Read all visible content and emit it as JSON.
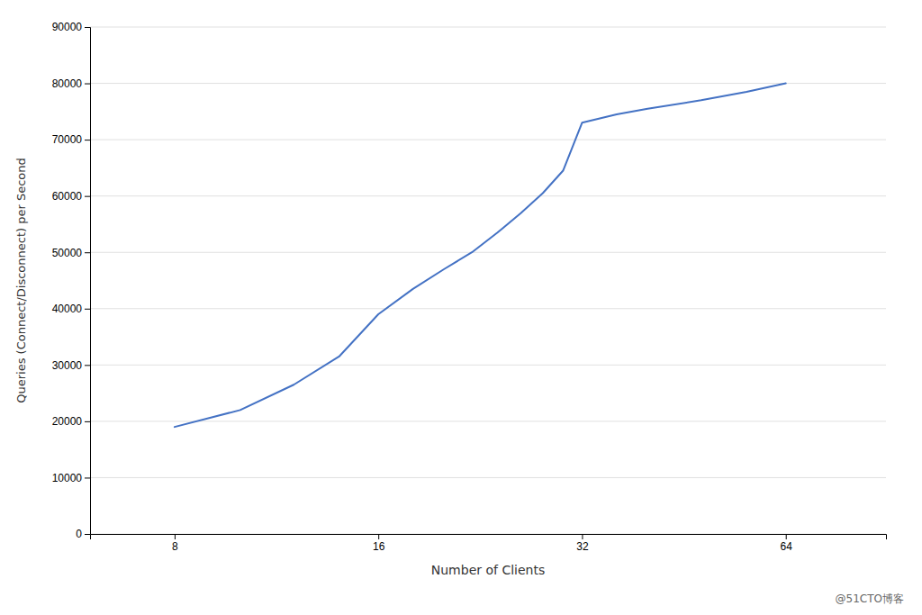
{
  "chart_data": {
    "type": "line",
    "x": [
      8,
      10,
      12,
      14,
      16,
      18,
      20,
      22,
      24,
      26,
      28,
      30,
      32,
      36,
      40,
      48,
      56,
      64
    ],
    "values": [
      19000,
      22000,
      26500,
      31500,
      39000,
      43500,
      47000,
      50000,
      53500,
      57000,
      60500,
      64500,
      73000,
      74500,
      75500,
      77000,
      78500,
      80000
    ],
    "color": "#4472C4",
    "log": "x",
    "grid": true,
    "xlabel": "Number of Clients",
    "ylabel": "Queries (Connect/Disconnect) per Second",
    "xlim": [
      6,
      90
    ],
    "ylim": [
      0,
      90000
    ],
    "xticks": [
      8,
      16,
      32,
      64
    ],
    "yticks": [
      0,
      10000,
      20000,
      30000,
      40000,
      50000,
      60000,
      70000,
      80000,
      90000
    ],
    "annotations": [
      "@51CTO博客"
    ]
  }
}
